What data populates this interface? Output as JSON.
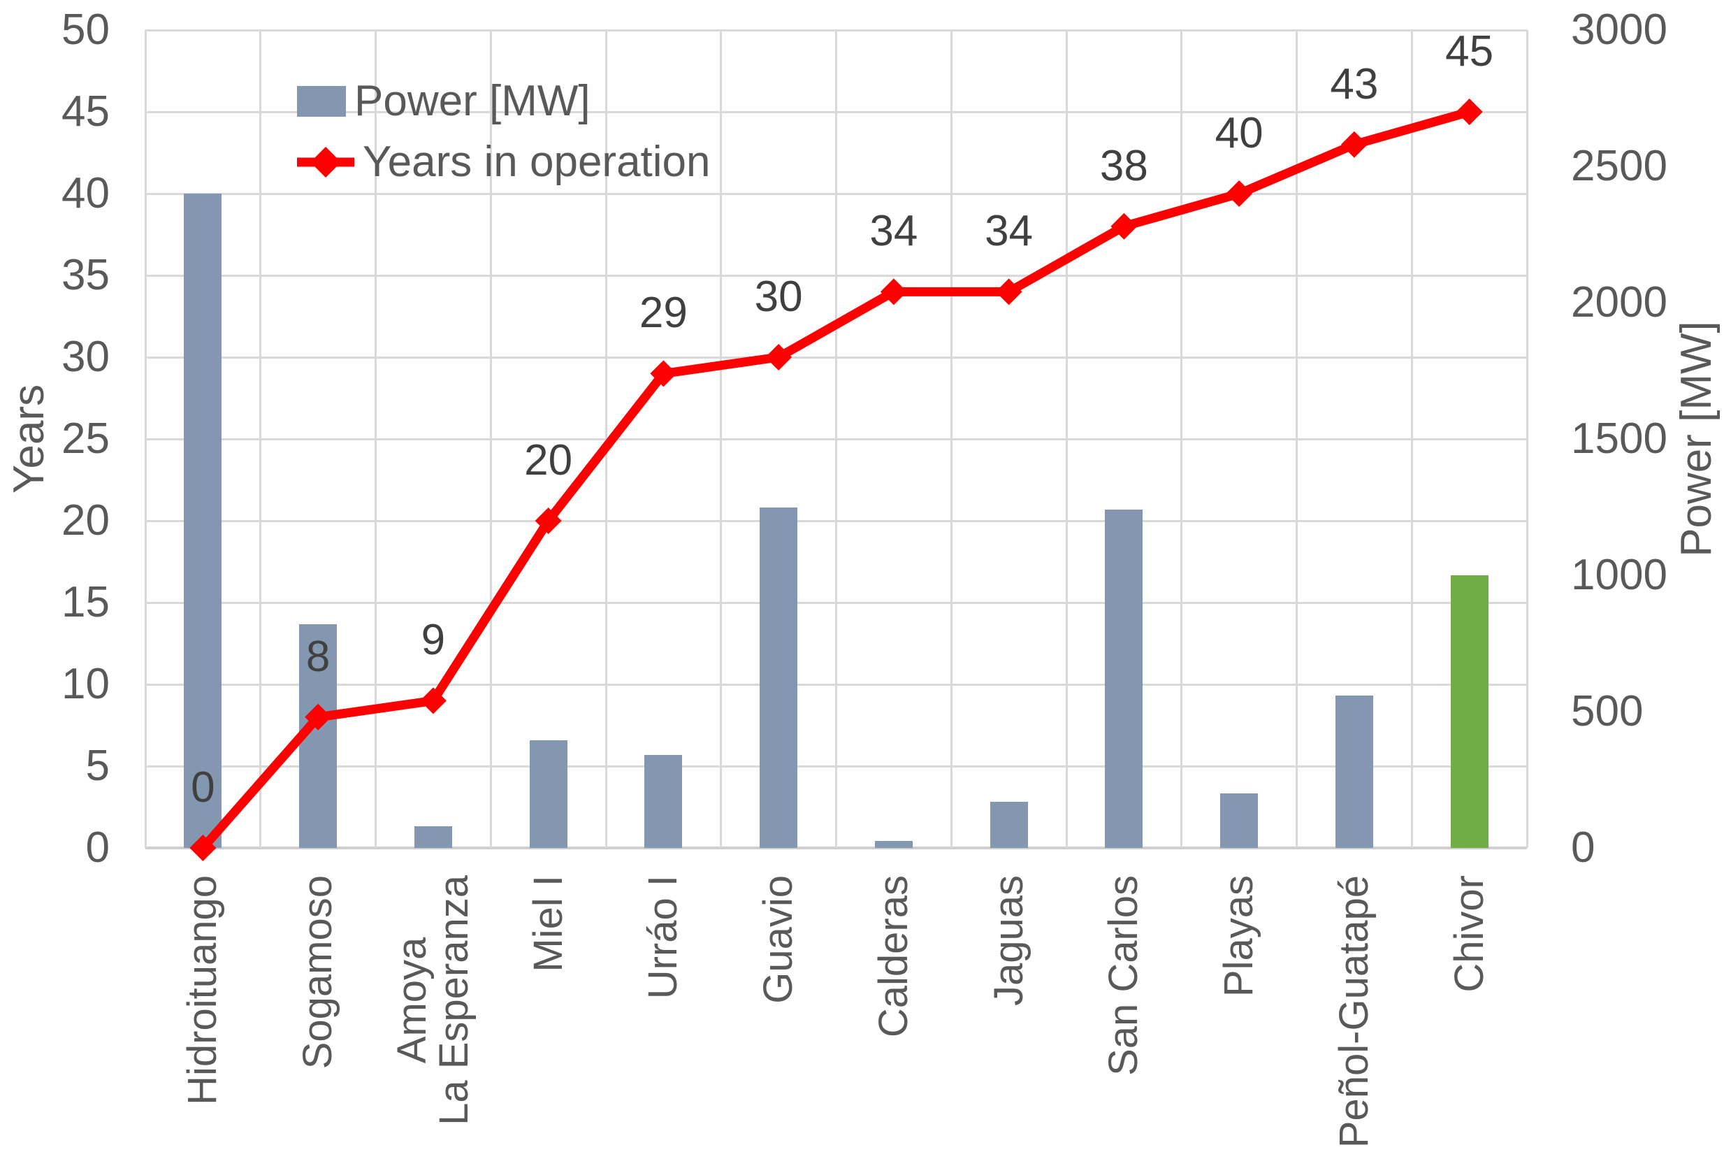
{
  "chart": {
    "background": "#ffffff",
    "tick_text_color": "#595959",
    "data_label_color": "#404040",
    "gridline_color": "#d9d9d9",
    "axis_line_color": "#cfcfcf"
  },
  "legend": {
    "items": [
      {
        "label": "Power [MW]",
        "swatch": "bar-square",
        "color": "#8497B0"
      },
      {
        "label": "Years in operation",
        "swatch": "line-diamond",
        "color": "#FF0000"
      }
    ]
  },
  "left_axis": {
    "title": "Years",
    "min": 0,
    "max": 50,
    "ticks": [
      0,
      5,
      10,
      15,
      20,
      25,
      30,
      35,
      40,
      45,
      50
    ]
  },
  "right_axis": {
    "title": "Power [MW]",
    "min": 0,
    "max": 3000,
    "ticks": [
      0,
      500,
      1000,
      1500,
      2000,
      2500,
      3000
    ]
  },
  "chart_data": {
    "type": "combo-bar-line",
    "categories": [
      "Hidroituango",
      "Sogamoso",
      "Amoya\nLa Esperanza",
      "Miel I",
      "Urráo I",
      "Guavio",
      "Calderas",
      "Jaguas",
      "San Carlos",
      "Playas",
      "Peñol-Guatapé",
      "Chivor"
    ],
    "series": [
      {
        "name": "Power [MW]",
        "type": "bar",
        "axis": "right",
        "values": [
          2400,
          820,
          80,
          396,
          340,
          1250,
          26,
          170,
          1240,
          200,
          560,
          1000
        ],
        "colors": [
          "#8497B0",
          "#8497B0",
          "#8497B0",
          "#8497B0",
          "#8497B0",
          "#8497B0",
          "#8497B0",
          "#8497B0",
          "#8497B0",
          "#8497B0",
          "#8497B0",
          "#70AD47"
        ]
      },
      {
        "name": "Years in operation",
        "type": "line",
        "axis": "left",
        "marker": "diamond",
        "color": "#FF0000",
        "values": [
          0,
          8,
          9,
          20,
          29,
          30,
          34,
          34,
          38,
          40,
          43,
          45
        ],
        "data_labels": [
          0,
          8,
          9,
          20,
          29,
          30,
          34,
          34,
          38,
          40,
          43,
          45
        ]
      }
    ],
    "grid": true,
    "legend_position": "top-left-inside"
  }
}
